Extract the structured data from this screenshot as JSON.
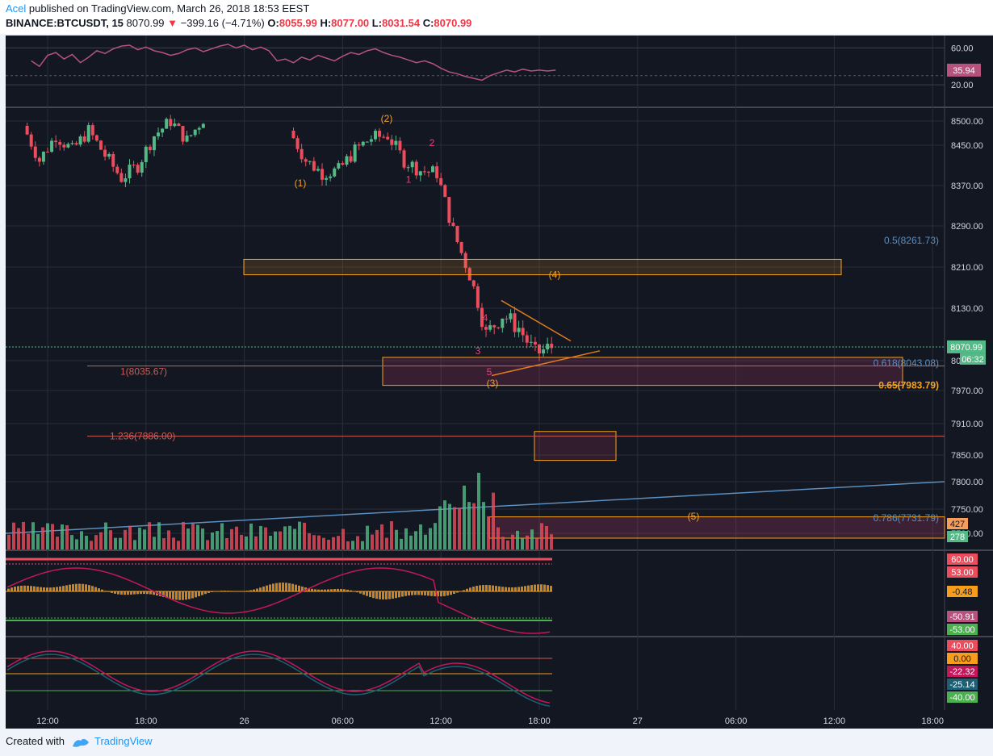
{
  "header": {
    "author": "Acel",
    "published": "published on TradingView.com, March 26, 2018 18:53 EEST",
    "symbol": "BINANCE:BTCUSDT, 15",
    "last": "8070.99",
    "change": "−399.16 (−4.71%)",
    "o_label": "O:",
    "o": "8055.99",
    "h_label": "H:",
    "h": "8077.00",
    "l_label": "L:",
    "l": "8031.54",
    "c_label": "C:",
    "c": "8070.99"
  },
  "footer": {
    "created_with": "Created with",
    "brand": "TradingView"
  },
  "colors": {
    "background": "#131722",
    "up": "#53b987",
    "down": "#eb4d5c",
    "zone": "#f7a21b",
    "fib_blue": "#5b8fbf",
    "fib_red": "#cf5b54",
    "rsi": "#b5527e",
    "wave_orange": "#f0a030",
    "wave_pink": "#e0457b"
  },
  "chart_data": [
    {
      "type": "line",
      "name": "rsi-pane",
      "y_ticks": [
        "60.00",
        "20.00"
      ],
      "last_value_label": "35.94",
      "series": [
        {
          "x": [
            "11:00",
            "11:30",
            "12:00",
            "12:30",
            "13:00",
            "13:30",
            "14:00",
            "14:30",
            "15:00",
            "15:30",
            "16:00",
            "16:30",
            "17:00",
            "17:30",
            "18:00",
            "18:30",
            "19:00",
            "19:30",
            "20:00",
            "20:30",
            "21:00",
            "21:30",
            "22:00",
            "22:30",
            "23:00",
            "23:30",
            "00:00",
            "00:30",
            "01:00",
            "01:30",
            "02:00",
            "02:30",
            "03:00",
            "03:30",
            "04:00",
            "04:30",
            "05:00",
            "05:30",
            "06:00",
            "06:30",
            "07:00",
            "07:30",
            "08:00",
            "08:30",
            "09:00",
            "09:30",
            "10:00",
            "10:30",
            "11:00",
            "11:30",
            "12:00",
            "12:30",
            "13:00",
            "13:30",
            "14:00",
            "14:30",
            "15:00",
            "15:30",
            "16:00",
            "16:30",
            "17:00",
            "17:30",
            "18:00",
            "18:30",
            "19:00"
          ],
          "values": [
            46,
            40,
            52,
            55,
            48,
            53,
            44,
            50,
            57,
            54,
            59,
            62,
            63,
            58,
            61,
            57,
            55,
            52,
            54,
            58,
            60,
            56,
            59,
            62,
            64,
            60,
            63,
            58,
            61,
            57,
            46,
            48,
            44,
            50,
            47,
            52,
            49,
            46,
            51,
            55,
            53,
            57,
            59,
            55,
            52,
            50,
            47,
            44,
            46,
            43,
            38,
            34,
            32,
            29,
            27,
            25,
            30,
            33,
            36,
            34,
            37,
            35,
            36,
            35,
            35.94
          ]
        }
      ]
    },
    {
      "type": "candlestick",
      "name": "price-pane",
      "y_ticks": [
        "8500.00",
        "8450.00",
        "8370.00",
        "8290.00",
        "8210.00",
        "8130.00",
        "8050.00",
        "7970.00",
        "7910.00",
        "7850.00",
        "7800.00",
        "7750.00",
        "7700.00"
      ],
      "x_ticks": [
        "12:00",
        "18:00",
        "26",
        "06:00",
        "12:00",
        "18:00",
        "27",
        "06:00",
        "12:00",
        "18:00"
      ],
      "last_price_label": "8070.99",
      "countdown_label": "06:32",
      "series": [
        {
          "name": "sequence-1",
          "x": [
            "10:45",
            "11:45",
            "12:45",
            "13:45",
            "14:45",
            "15:45",
            "16:45",
            "17:45",
            "18:45",
            "19:45",
            "20:45",
            "21:45"
          ],
          "close": [
            8490,
            8420,
            8470,
            8440,
            8480,
            8430,
            8385,
            8410,
            8470,
            8500,
            8460,
            8505
          ]
        },
        {
          "name": "sequence-2",
          "x": [
            "03:00",
            "04:00",
            "05:00",
            "06:00",
            "07:00",
            "08:00",
            "09:00",
            "10:00",
            "11:00",
            "12:00",
            "13:00",
            "14:00",
            "15:00",
            "16:00",
            "17:00",
            "18:00",
            "19:00"
          ],
          "close": [
            8480,
            8420,
            8395,
            8400,
            8440,
            8465,
            8470,
            8420,
            8400,
            8395,
            8280,
            8195,
            8090,
            8120,
            8100,
            8060,
            8071
          ]
        }
      ],
      "wave_labels": [
        {
          "text": "(1)",
          "price": 8375
        },
        {
          "text": "(2)",
          "price": 8505
        },
        {
          "text": "(3)",
          "price": 7990
        },
        {
          "text": "(4)",
          "price": 8195
        },
        {
          "text": "(5)",
          "price": 7735
        },
        {
          "text": "1",
          "price": 8382
        },
        {
          "text": "2",
          "price": 8455
        },
        {
          "text": "3",
          "price": 8065
        },
        {
          "text": "4",
          "price": 8115
        },
        {
          "text": "5",
          "price": 8020
        }
      ],
      "fib_levels": [
        {
          "label": "0.5(8261.73)",
          "price": 8261.73
        },
        {
          "label": "1(8035.67)",
          "price": 8035.67
        },
        {
          "label": "0.618(8043.08)",
          "price": 8043.08
        },
        {
          "label": "0.65(7983.79)",
          "price": 7983.79
        },
        {
          "label": "1.236(7886.00)",
          "price": 7886.0
        },
        {
          "label": "0.786(7731.79)",
          "price": 7731.79
        }
      ],
      "volume_labels": [
        "427",
        "278"
      ]
    },
    {
      "type": "bar",
      "name": "macd-pane",
      "y_ticks": [
        "60.00",
        "53.00",
        "-0.48",
        "-50.91",
        "-53.00"
      ]
    },
    {
      "type": "line",
      "name": "stoch-pane",
      "y_ticks": [
        "40.00",
        "0.00",
        "-22.32",
        "-25.14",
        "-40.00"
      ]
    }
  ]
}
